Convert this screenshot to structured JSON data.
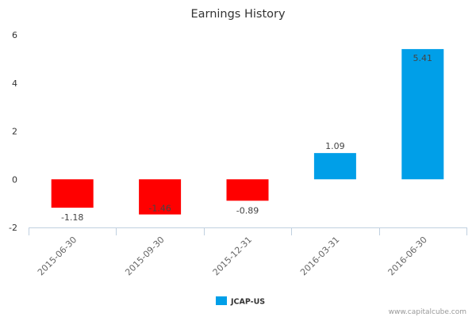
{
  "chart_data": {
    "type": "bar",
    "title": "Earnings History",
    "xlabel": "",
    "ylabel": "",
    "ylim": [
      -2,
      6
    ],
    "yticks": [
      -2,
      0,
      2,
      4,
      6
    ],
    "categories": [
      "2015-06-30",
      "2015-09-30",
      "2015-12-31",
      "2016-03-31",
      "2016-06-30"
    ],
    "series": [
      {
        "name": "JCAP-US",
        "values": [
          -1.18,
          -1.46,
          -0.89,
          1.09,
          5.41
        ],
        "data_labels": [
          "-1.18",
          "-1.46",
          "-0.89",
          "1.09",
          "5.41"
        ]
      }
    ],
    "colors": {
      "positive": "#009FE8",
      "negative": "#FF0000",
      "axis": "#C0D0E0"
    },
    "grid": false,
    "legend_placement": "bottom-center",
    "credit": "www.capitalcube.com"
  }
}
